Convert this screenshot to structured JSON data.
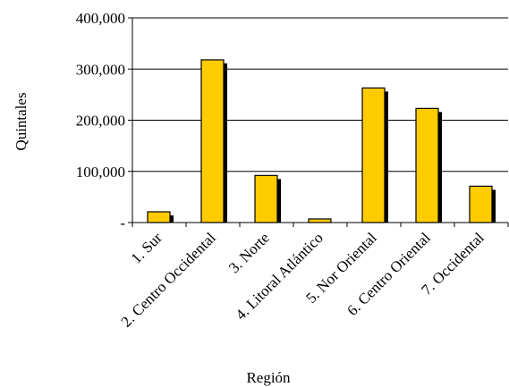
{
  "chart_data": {
    "type": "bar",
    "title": "",
    "xlabel": "Región",
    "ylabel": "Quintales",
    "ylim": [
      0,
      400000
    ],
    "yticks": [
      {
        "value": 0,
        "label": "-"
      },
      {
        "value": 100000,
        "label": "100,000"
      },
      {
        "value": 200000,
        "label": "200,000"
      },
      {
        "value": 300000,
        "label": "300,000"
      },
      {
        "value": 400000,
        "label": "400,000"
      }
    ],
    "grid": "horizontal",
    "legend": "none",
    "categories": [
      "1. Sur",
      "2. Centro Occidental",
      "3. Norte",
      "4. Litoral Atlántico",
      "5. Nor Oriental",
      "6. Centro Oriental",
      "7. Occidental"
    ],
    "values": [
      21000,
      318000,
      92000,
      7000,
      263000,
      223000,
      71000
    ],
    "colors": {
      "bar": "#FFCC00",
      "shadow": "#000000",
      "grid": "#000000",
      "axis": "#000000"
    }
  }
}
